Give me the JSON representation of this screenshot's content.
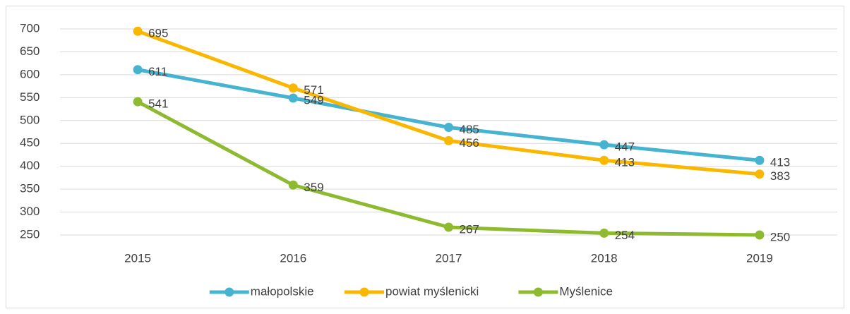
{
  "chart_data": {
    "type": "line",
    "categories": [
      "2015",
      "2016",
      "2017",
      "2018",
      "2019"
    ],
    "series": [
      {
        "name": "małopolskie",
        "color": "#46b4d0",
        "values": [
          611,
          549,
          485,
          447,
          413
        ]
      },
      {
        "name": "powiat myślenicki",
        "color": "#fab700",
        "values": [
          695,
          571,
          456,
          413,
          383
        ]
      },
      {
        "name": "Myślenice",
        "color": "#8dba2e",
        "values": [
          541,
          359,
          267,
          254,
          250
        ]
      }
    ],
    "ylim": [
      250,
      700
    ],
    "yticks": [
      250,
      300,
      350,
      400,
      450,
      500,
      550,
      600,
      650,
      700
    ],
    "grid": true,
    "legend": "bottom",
    "data_labels": true
  }
}
